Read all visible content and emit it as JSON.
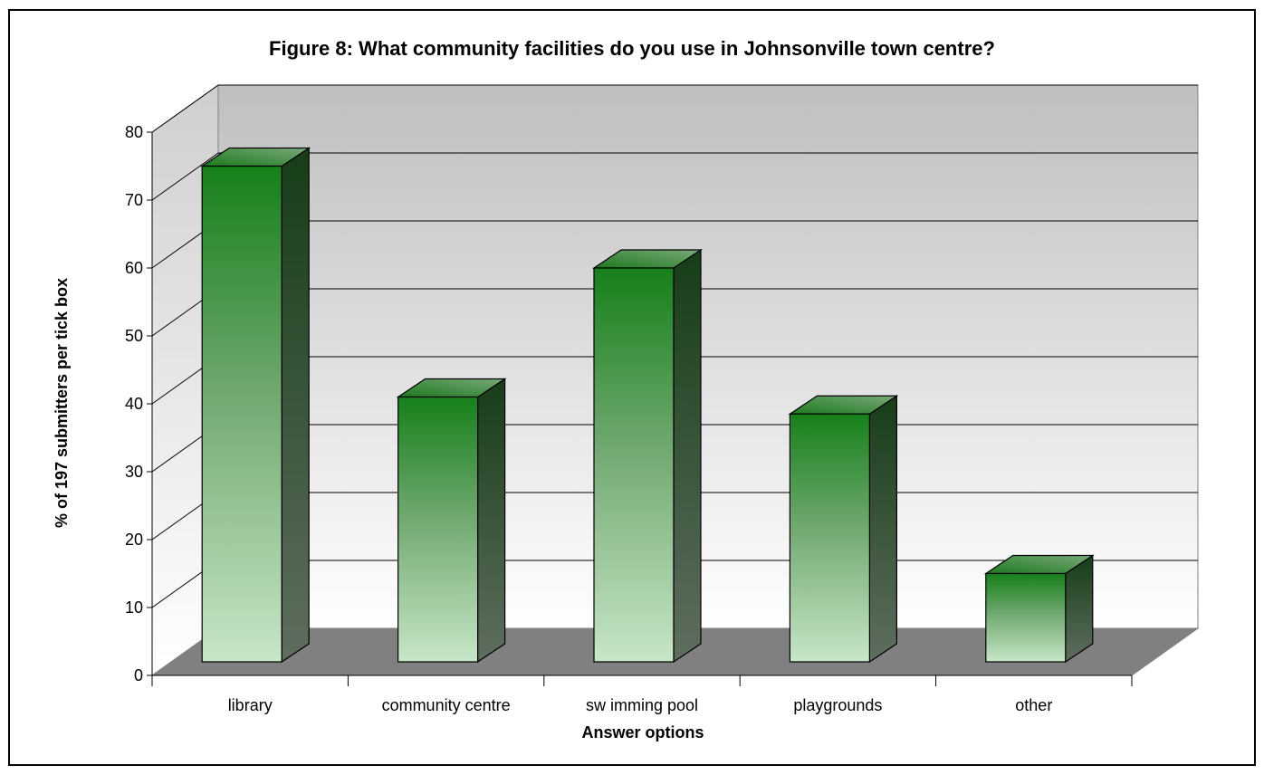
{
  "chart_data": {
    "type": "bar",
    "style": "3d-column",
    "title": "Figure 8: What community facilities do you use in Johnsonville town centre?",
    "xlabel": "Answer options",
    "ylabel": "% of 197 submitters per tick box",
    "categories": [
      "library",
      "community centre",
      "sw imming pool",
      "playgrounds",
      "other"
    ],
    "values": [
      73,
      39,
      58,
      36.5,
      13
    ],
    "ylim": [
      0,
      80
    ],
    "yticks": [
      "0",
      "10",
      "20",
      "30",
      "40",
      "50",
      "60",
      "70",
      "80"
    ],
    "grid": true,
    "legend": "none",
    "colors": {
      "bar_top": "#16801a",
      "bar_bottom": "#c8e6c8",
      "bar_side_top": "#173d18",
      "bar_side_bottom": "#5f6e5f",
      "bar_cap": "#1e6e20",
      "floor": "#808080",
      "wall_top": "#c0c0c0",
      "wall_bottom": "#ffffff"
    }
  }
}
